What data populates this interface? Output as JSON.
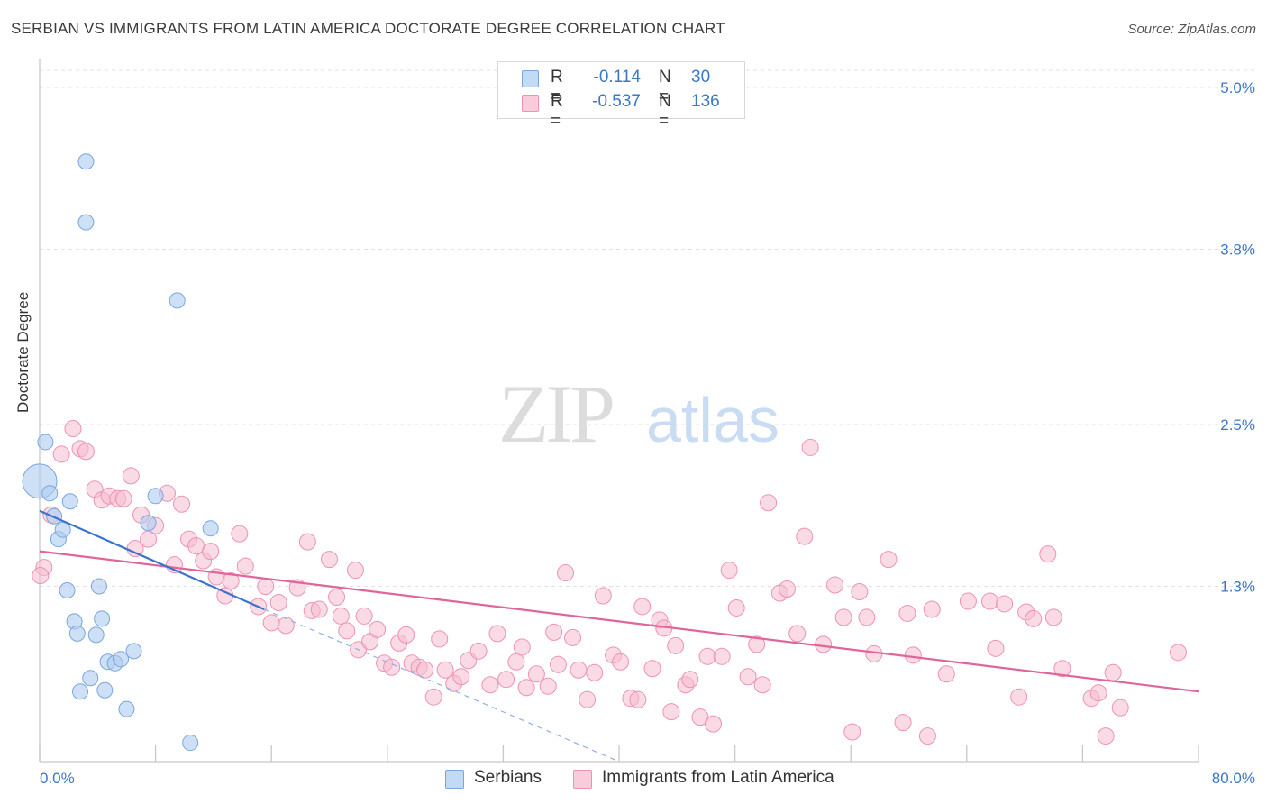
{
  "header": {
    "title": "SERBIAN VS IMMIGRANTS FROM LATIN AMERICA DOCTORATE DEGREE CORRELATION CHART",
    "source": "Source: ZipAtlas.com"
  },
  "watermark": {
    "zip": "ZIP",
    "atlas": "atlas"
  },
  "legend": {
    "rows": [
      {
        "r_label": "R =",
        "r_value": "-0.114",
        "n_label": "N =",
        "n_value": "30"
      },
      {
        "r_label": "R =",
        "r_value": "-0.537",
        "n_label": "N =",
        "n_value": "136"
      }
    ]
  },
  "bottom_legend": {
    "serbians": "Serbians",
    "latin": "Immigrants from Latin America"
  },
  "colors": {
    "serbian_fill": "#aecbf0",
    "serbian_stroke": "#7aa6de",
    "serbian_line": "#3a74cc",
    "latin_fill": "#f6bccf",
    "latin_stroke": "#eb93b1",
    "latin_line": "#e0659a",
    "tick_text": "#3b78c8"
  },
  "chart_data": {
    "type": "scatter",
    "title": "SERBIAN VS IMMIGRANTS FROM LATIN AMERICA DOCTORATE DEGREE CORRELATION CHART",
    "xlabel": "",
    "ylabel": "Doctorate Degree",
    "xlim": [
      0,
      80
    ],
    "ylim": [
      0,
      5.0
    ],
    "x_tick_labels": [
      "0.0%",
      "80.0%"
    ],
    "y_ticks": [
      1.3,
      2.5,
      3.8,
      5.0
    ],
    "y_tick_labels": [
      "1.3%",
      "2.5%",
      "3.8%",
      "5.0%"
    ],
    "grid": true,
    "legend_position": "top-center",
    "series": [
      {
        "name": "Serbians",
        "r": -0.114,
        "n": 30,
        "trend": {
          "x": [
            0,
            15.5
          ],
          "y": [
            1.86,
            1.13
          ]
        },
        "trend_dashed_extension": {
          "x": [
            15.5,
            40
          ],
          "y": [
            1.13,
            0.0
          ]
        },
        "points": [
          [
            0.0,
            2.08
          ],
          [
            0.4,
            2.37
          ],
          [
            0.7,
            1.99
          ],
          [
            1.0,
            1.82
          ],
          [
            1.3,
            1.65
          ],
          [
            1.6,
            1.72
          ],
          [
            1.9,
            1.27
          ],
          [
            2.1,
            1.93
          ],
          [
            2.4,
            1.04
          ],
          [
            2.6,
            0.95
          ],
          [
            2.8,
            0.52
          ],
          [
            3.2,
            4.45
          ],
          [
            3.2,
            4.0
          ],
          [
            3.5,
            0.62
          ],
          [
            3.9,
            0.94
          ],
          [
            4.1,
            1.3
          ],
          [
            4.3,
            1.06
          ],
          [
            4.5,
            0.53
          ],
          [
            4.7,
            0.74
          ],
          [
            5.2,
            0.73
          ],
          [
            5.6,
            0.76
          ],
          [
            6.0,
            0.39
          ],
          [
            6.5,
            0.82
          ],
          [
            7.5,
            1.77
          ],
          [
            8.0,
            1.97
          ],
          [
            9.5,
            3.42
          ],
          [
            10.4,
            0.14
          ],
          [
            11.8,
            1.73
          ]
        ]
      },
      {
        "name": "Immigrants from Latin America",
        "r": -0.537,
        "n": 136,
        "trend": {
          "x": [
            0,
            80
          ],
          "y": [
            1.56,
            0.52
          ]
        },
        "points": [
          [
            0.3,
            1.44
          ],
          [
            0.8,
            1.83
          ],
          [
            1.5,
            2.28
          ],
          [
            2.3,
            2.47
          ],
          [
            2.8,
            2.32
          ],
          [
            3.2,
            2.3
          ],
          [
            3.8,
            2.02
          ],
          [
            4.3,
            1.94
          ],
          [
            4.8,
            1.97
          ],
          [
            5.4,
            1.95
          ],
          [
            5.8,
            1.95
          ],
          [
            6.3,
            2.12
          ],
          [
            6.6,
            1.58
          ],
          [
            7.0,
            1.83
          ],
          [
            7.5,
            1.65
          ],
          [
            8.0,
            1.75
          ],
          [
            8.8,
            1.99
          ],
          [
            9.3,
            1.46
          ],
          [
            9.8,
            1.91
          ],
          [
            10.3,
            1.65
          ],
          [
            10.8,
            1.6
          ],
          [
            11.3,
            1.49
          ],
          [
            11.8,
            1.56
          ],
          [
            12.2,
            1.37
          ],
          [
            12.8,
            1.23
          ],
          [
            13.2,
            1.34
          ],
          [
            13.8,
            1.69
          ],
          [
            14.2,
            1.45
          ],
          [
            15.1,
            1.15
          ],
          [
            15.6,
            1.3
          ],
          [
            16.0,
            1.03
          ],
          [
            16.5,
            1.18
          ],
          [
            17.0,
            1.01
          ],
          [
            17.8,
            1.29
          ],
          [
            18.5,
            1.63
          ],
          [
            18.8,
            1.12
          ],
          [
            19.3,
            1.13
          ],
          [
            20.0,
            1.5
          ],
          [
            20.5,
            1.22
          ],
          [
            20.8,
            1.08
          ],
          [
            21.2,
            0.97
          ],
          [
            21.8,
            1.42
          ],
          [
            22.0,
            0.83
          ],
          [
            22.4,
            1.08
          ],
          [
            22.8,
            0.89
          ],
          [
            23.3,
            0.98
          ],
          [
            23.8,
            0.73
          ],
          [
            24.3,
            0.7
          ],
          [
            24.8,
            0.88
          ],
          [
            25.3,
            0.94
          ],
          [
            25.7,
            0.73
          ],
          [
            26.2,
            0.7
          ],
          [
            26.6,
            0.68
          ],
          [
            27.2,
            0.48
          ],
          [
            27.6,
            0.91
          ],
          [
            28.0,
            0.68
          ],
          [
            28.6,
            0.58
          ],
          [
            29.1,
            0.63
          ],
          [
            29.6,
            0.75
          ],
          [
            30.3,
            0.82
          ],
          [
            31.1,
            0.57
          ],
          [
            31.6,
            0.95
          ],
          [
            32.2,
            0.61
          ],
          [
            32.9,
            0.74
          ],
          [
            33.3,
            0.85
          ],
          [
            33.6,
            0.55
          ],
          [
            34.3,
            0.65
          ],
          [
            35.1,
            0.56
          ],
          [
            35.5,
            0.96
          ],
          [
            35.8,
            0.72
          ],
          [
            36.3,
            1.4
          ],
          [
            36.8,
            0.92
          ],
          [
            37.2,
            0.68
          ],
          [
            37.8,
            0.46
          ],
          [
            38.3,
            0.66
          ],
          [
            38.9,
            1.23
          ],
          [
            39.6,
            0.79
          ],
          [
            40.1,
            0.74
          ],
          [
            40.8,
            0.47
          ],
          [
            41.3,
            0.46
          ],
          [
            41.6,
            1.15
          ],
          [
            42.3,
            0.69
          ],
          [
            42.8,
            1.05
          ],
          [
            43.1,
            0.99
          ],
          [
            43.6,
            0.37
          ],
          [
            43.9,
            0.86
          ],
          [
            44.6,
            0.57
          ],
          [
            44.9,
            0.61
          ],
          [
            45.6,
            0.33
          ],
          [
            46.1,
            0.78
          ],
          [
            46.5,
            0.28
          ],
          [
            47.1,
            0.78
          ],
          [
            47.6,
            1.42
          ],
          [
            48.1,
            1.14
          ],
          [
            48.9,
            0.63
          ],
          [
            49.5,
            0.87
          ],
          [
            49.9,
            0.57
          ],
          [
            50.3,
            1.92
          ],
          [
            51.1,
            1.25
          ],
          [
            51.6,
            1.28
          ],
          [
            52.3,
            0.95
          ],
          [
            52.8,
            1.67
          ],
          [
            53.2,
            2.33
          ],
          [
            54.1,
            0.87
          ],
          [
            54.9,
            1.31
          ],
          [
            55.5,
            1.07
          ],
          [
            56.1,
            0.22
          ],
          [
            56.6,
            1.26
          ],
          [
            57.1,
            1.07
          ],
          [
            57.6,
            0.8
          ],
          [
            58.6,
            1.5
          ],
          [
            59.6,
            0.29
          ],
          [
            59.9,
            1.1
          ],
          [
            60.3,
            0.79
          ],
          [
            61.3,
            0.19
          ],
          [
            61.6,
            1.13
          ],
          [
            62.6,
            0.65
          ],
          [
            64.1,
            1.19
          ],
          [
            65.6,
            1.19
          ],
          [
            66.0,
            0.84
          ],
          [
            66.6,
            1.17
          ],
          [
            67.6,
            0.48
          ],
          [
            68.1,
            1.11
          ],
          [
            68.6,
            1.06
          ],
          [
            69.6,
            1.54
          ],
          [
            70.0,
            1.07
          ],
          [
            70.6,
            0.69
          ],
          [
            72.6,
            0.47
          ],
          [
            73.1,
            0.51
          ],
          [
            73.6,
            0.19
          ],
          [
            74.1,
            0.66
          ],
          [
            74.6,
            0.4
          ],
          [
            78.6,
            0.81
          ],
          [
            0.05,
            1.38
          ]
        ]
      }
    ]
  }
}
